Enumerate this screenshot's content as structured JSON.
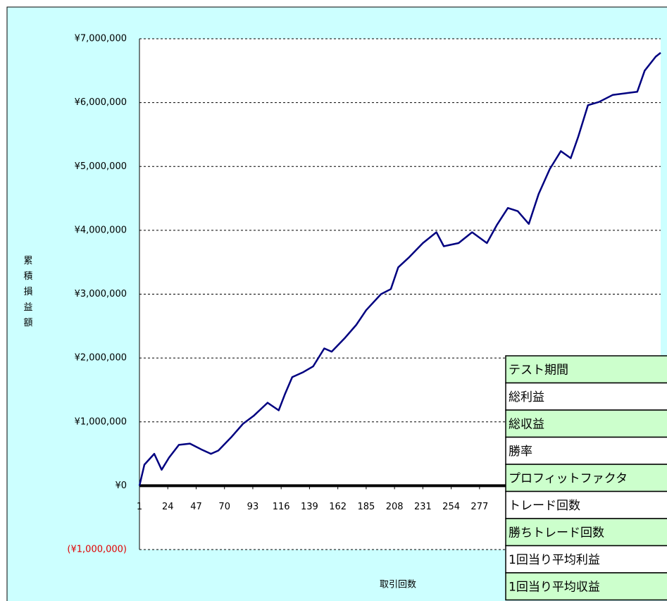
{
  "chart_data": {
    "type": "line",
    "y_axis_label": "累積損益額",
    "x_axis_label": "取引回数",
    "x": [
      1,
      5,
      13,
      19,
      25,
      33,
      42,
      51,
      59,
      65,
      76,
      85,
      94,
      105,
      114,
      119,
      125,
      134,
      142,
      151,
      157,
      168,
      177,
      185,
      197,
      205,
      211,
      220,
      231,
      242,
      248,
      260,
      271,
      283,
      291,
      300,
      308,
      317,
      325,
      334,
      343,
      351,
      357,
      365,
      374,
      385,
      397,
      405,
      411,
      420,
      424
    ],
    "values": [
      0,
      330000,
      500000,
      250000,
      440000,
      640000,
      660000,
      570000,
      500000,
      550000,
      770000,
      970000,
      1100000,
      1300000,
      1180000,
      1430000,
      1700000,
      1780000,
      1870000,
      2150000,
      2100000,
      2320000,
      2520000,
      2750000,
      3000000,
      3080000,
      3420000,
      3580000,
      3800000,
      3970000,
      3750000,
      3800000,
      3970000,
      3800000,
      4080000,
      4350000,
      4300000,
      4100000,
      4570000,
      4960000,
      5240000,
      5130000,
      5460000,
      5960000,
      6010000,
      6120000,
      6150000,
      6170000,
      6500000,
      6720000,
      6780000
    ],
    "color": "#000080",
    "xlim": [
      1,
      424
    ],
    "xticks": [
      1,
      24,
      47,
      70,
      93,
      116,
      139,
      162,
      185,
      208,
      231,
      254,
      277
    ],
    "ylim": [
      -1000000,
      7000000
    ],
    "yticks": [
      {
        "value": -1000000,
        "label": "(¥1,000,000)"
      },
      {
        "value": 0,
        "label": "¥0"
      },
      {
        "value": 1000000,
        "label": "¥1,000,000"
      },
      {
        "value": 2000000,
        "label": "¥2,000,000"
      },
      {
        "value": 3000000,
        "label": "¥3,000,000"
      },
      {
        "value": 4000000,
        "label": "¥4,000,000"
      },
      {
        "value": 5000000,
        "label": "¥5,000,000"
      },
      {
        "value": 6000000,
        "label": "¥6,000,000"
      },
      {
        "value": 7000000,
        "label": "¥7,000,000"
      }
    ],
    "grid": true,
    "zero_line": true,
    "negative_label_color": "#e00000"
  },
  "table": {
    "rows": [
      "テスト期間",
      "総利益",
      "総収益",
      "勝率",
      "プロフィットファクタ",
      "トレード回数",
      "勝ちトレード回数",
      "1回当り平均利益",
      "1回当り平均収益"
    ]
  }
}
